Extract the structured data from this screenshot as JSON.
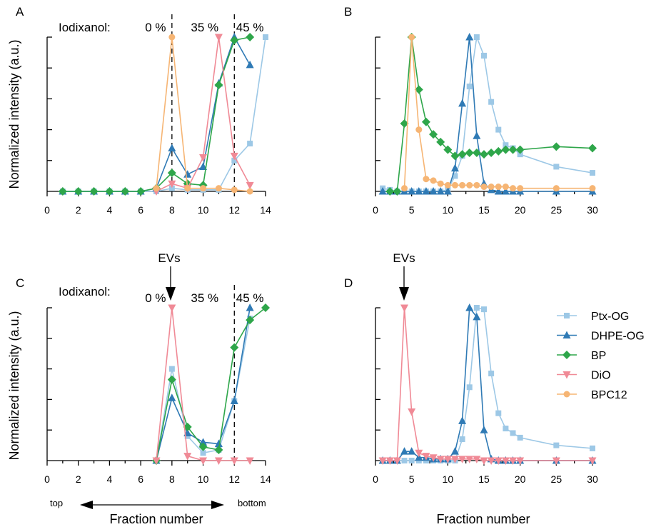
{
  "colors": {
    "Ptx-OG": "#9dc8e6",
    "DHPE-OG": "#2f7ab5",
    "BP": "#2ea64a",
    "DiO": "#f08a96",
    "BPC12": "#f6b574"
  },
  "markers": {
    "Ptx-OG": "square",
    "DHPE-OG": "triangle-up",
    "BP": "diamond",
    "DiO": "triangle-down",
    "BPC12": "circle"
  },
  "chart_data": [
    {
      "panel": "A",
      "type": "line",
      "ylabel": "Normalized intensity (a.u.)",
      "xlabel": "",
      "xlim": [
        0,
        14
      ],
      "ylim": [
        0,
        1
      ],
      "xticks": [
        0,
        2,
        4,
        6,
        8,
        10,
        12,
        14
      ],
      "y_tick_count": 5,
      "y_tick_labels": false,
      "iodixanol_label": "Iodixanol:",
      "gradient_labels": [
        {
          "text": "0 %",
          "x": 6.95
        },
        {
          "text": "35 %",
          "x": 10.1
        },
        {
          "text": "45 %",
          "x": 13.0
        }
      ],
      "dividers": [
        8,
        12
      ],
      "series": [
        {
          "name": "Ptx-OG",
          "x": [
            1,
            2,
            3,
            4,
            5,
            6,
            7,
            8,
            9,
            10,
            11,
            12,
            13,
            14
          ],
          "y": [
            0,
            0,
            0,
            0,
            0,
            0,
            0,
            0.02,
            0.01,
            0.01,
            0.01,
            0.2,
            0.31,
            1.0
          ]
        },
        {
          "name": "DHPE-OG",
          "x": [
            1,
            2,
            3,
            4,
            5,
            6,
            7,
            8,
            9,
            10,
            11,
            12,
            13
          ],
          "y": [
            0,
            0,
            0,
            0,
            0,
            0,
            0.02,
            0.28,
            0.11,
            0.16,
            0.7,
            1.0,
            0.82
          ]
        },
        {
          "name": "BP",
          "x": [
            1,
            2,
            3,
            4,
            5,
            6,
            7,
            8,
            9,
            10,
            11,
            12,
            13
          ],
          "y": [
            0,
            0,
            0,
            0,
            0,
            0,
            0.02,
            0.12,
            0.05,
            0.04,
            0.69,
            0.98,
            1.0
          ]
        },
        {
          "name": "DiO",
          "x": [
            7,
            8,
            9,
            10,
            11,
            12,
            13
          ],
          "y": [
            0.0,
            0.05,
            0.02,
            0.22,
            1.0,
            0.23,
            0.04
          ]
        },
        {
          "name": "BPC12",
          "x": [
            7,
            8,
            9,
            10,
            11,
            12,
            13
          ],
          "y": [
            0.02,
            1.0,
            0.02,
            0.02,
            0.02,
            0.01,
            0.0
          ]
        }
      ]
    },
    {
      "panel": "B",
      "type": "line",
      "ylabel": "",
      "xlabel": "",
      "xlim": [
        0,
        30
      ],
      "ylim": [
        0,
        1
      ],
      "xticks": [
        0,
        5,
        10,
        15,
        20,
        25,
        30
      ],
      "y_tick_count": 5,
      "y_tick_labels": false,
      "series": [
        {
          "name": "Ptx-OG",
          "x": [
            1,
            2,
            3,
            4,
            5,
            6,
            7,
            8,
            9,
            10,
            11,
            12,
            13,
            14,
            15,
            16,
            17,
            18,
            19,
            20,
            25,
            30
          ],
          "y": [
            0.02,
            0.01,
            0.0,
            0.0,
            0.0,
            0.0,
            0.0,
            0.0,
            0.0,
            0.01,
            0.1,
            0.23,
            0.68,
            1.0,
            0.88,
            0.58,
            0.4,
            0.3,
            0.28,
            0.24,
            0.16,
            0.12
          ]
        },
        {
          "name": "DHPE-OG",
          "x": [
            1,
            2,
            3,
            4,
            5,
            6,
            7,
            8,
            9,
            10,
            11,
            12,
            13,
            14,
            15,
            16,
            17,
            18,
            19,
            20,
            25,
            30
          ],
          "y": [
            0,
            0,
            0,
            0,
            0,
            0,
            0,
            0,
            0,
            0,
            0.15,
            0.57,
            1.0,
            0.36,
            0.05,
            0.01,
            0.0,
            0.0,
            0.0,
            0.0,
            0.0,
            0.0
          ]
        },
        {
          "name": "BP",
          "x": [
            2,
            3,
            4,
            5,
            6,
            7,
            8,
            9,
            10,
            11,
            12,
            13,
            14,
            15,
            16,
            17,
            18,
            19,
            20,
            25,
            30
          ],
          "y": [
            0.0,
            0.0,
            0.44,
            1.0,
            0.66,
            0.45,
            0.37,
            0.32,
            0.27,
            0.23,
            0.24,
            0.25,
            0.25,
            0.24,
            0.25,
            0.26,
            0.27,
            0.27,
            0.27,
            0.29,
            0.28
          ]
        },
        {
          "name": "BPC12",
          "x": [
            4,
            5,
            6,
            7,
            8,
            9,
            10,
            11,
            12,
            13,
            14,
            15,
            16,
            17,
            18,
            19,
            20,
            25,
            30
          ],
          "y": [
            0.02,
            1.0,
            0.4,
            0.08,
            0.07,
            0.05,
            0.04,
            0.04,
            0.04,
            0.04,
            0.04,
            0.03,
            0.03,
            0.03,
            0.03,
            0.02,
            0.02,
            0.02,
            0.02
          ]
        }
      ]
    },
    {
      "panel": "C",
      "type": "line",
      "ylabel": "Normalized intensity (a.u.)",
      "xlabel": "Fraction number",
      "xlim": [
        0,
        14
      ],
      "ylim": [
        0,
        1
      ],
      "xticks": [
        0,
        2,
        4,
        6,
        8,
        10,
        12,
        14
      ],
      "y_tick_count": 5,
      "y_tick_labels": false,
      "iodixanol_label": "Iodixanol:",
      "gradient_labels": [
        {
          "text": "0 %",
          "x": 6.95
        },
        {
          "text": "35 %",
          "x": 10.1
        },
        {
          "text": "45 %",
          "x": 13.0
        }
      ],
      "dividers": [
        12
      ],
      "evs_label": "EVs",
      "evs_x": 8,
      "top_label": "top",
      "bottom_label": "bottom",
      "series": [
        {
          "name": "Ptx-OG",
          "x": [
            7,
            8,
            9,
            10,
            11,
            12,
            13
          ],
          "y": [
            0.0,
            0.6,
            0.16,
            0.05,
            0.07,
            0.39,
            0.93
          ]
        },
        {
          "name": "DHPE-OG",
          "x": [
            7,
            8,
            9,
            10,
            11,
            12,
            13
          ],
          "y": [
            0.0,
            0.41,
            0.18,
            0.12,
            0.11,
            0.39,
            1.0
          ]
        },
        {
          "name": "BP",
          "x": [
            7,
            8,
            9,
            10,
            11,
            12,
            13,
            14
          ],
          "y": [
            0.0,
            0.53,
            0.22,
            0.09,
            0.07,
            0.74,
            0.92,
            1.0
          ]
        },
        {
          "name": "DiO",
          "x": [
            7,
            8,
            9,
            10,
            11,
            12,
            13
          ],
          "y": [
            0.0,
            1.0,
            0.03,
            0.0,
            0.0,
            0.0,
            0.0
          ]
        }
      ]
    },
    {
      "panel": "D",
      "type": "line",
      "ylabel": "",
      "xlabel": "Fraction number",
      "xlim": [
        0,
        30
      ],
      "ylim": [
        0,
        1
      ],
      "xticks": [
        0,
        5,
        10,
        15,
        20,
        25,
        30
      ],
      "y_tick_count": 5,
      "y_tick_labels": false,
      "evs_label": "EVs",
      "evs_x": 4,
      "series": [
        {
          "name": "Ptx-OG",
          "x": [
            1,
            2,
            3,
            4,
            5,
            6,
            7,
            8,
            9,
            10,
            11,
            12,
            13,
            14,
            15,
            16,
            17,
            18,
            19,
            20,
            25,
            30
          ],
          "y": [
            0,
            0,
            0,
            0,
            0,
            0,
            0,
            0,
            0,
            0,
            0,
            0.14,
            0.48,
            1.0,
            0.99,
            0.57,
            0.31,
            0.21,
            0.18,
            0.15,
            0.1,
            0.08
          ]
        },
        {
          "name": "DHPE-OG",
          "x": [
            1,
            2,
            3,
            4,
            5,
            6,
            7,
            8,
            9,
            10,
            11,
            12,
            13,
            14,
            15,
            16,
            17,
            18,
            19,
            20,
            25,
            30
          ],
          "y": [
            0,
            0,
            0,
            0.06,
            0.06,
            0.02,
            0.02,
            0.01,
            0.01,
            0.01,
            0.06,
            0.26,
            1.0,
            0.94,
            0.2,
            0.01,
            0.0,
            0.0,
            0.0,
            0.0,
            0.0,
            0.0
          ]
        },
        {
          "name": "DiO",
          "x": [
            1,
            2,
            3,
            4,
            5,
            6,
            7,
            8,
            9,
            10,
            11,
            12,
            13,
            14,
            15,
            16,
            17,
            18,
            19,
            20,
            25,
            30
          ],
          "y": [
            0,
            0,
            0,
            1.0,
            0.32,
            0.05,
            0.03,
            0.02,
            0.01,
            0.01,
            0.01,
            0.01,
            0.01,
            0.01,
            0.0,
            0.0,
            0.0,
            0.0,
            0.0,
            0.0,
            0.0,
            0.0
          ]
        }
      ]
    }
  ],
  "legend": [
    "Ptx-OG",
    "DHPE-OG",
    "BP",
    "DiO",
    "BPC12"
  ]
}
